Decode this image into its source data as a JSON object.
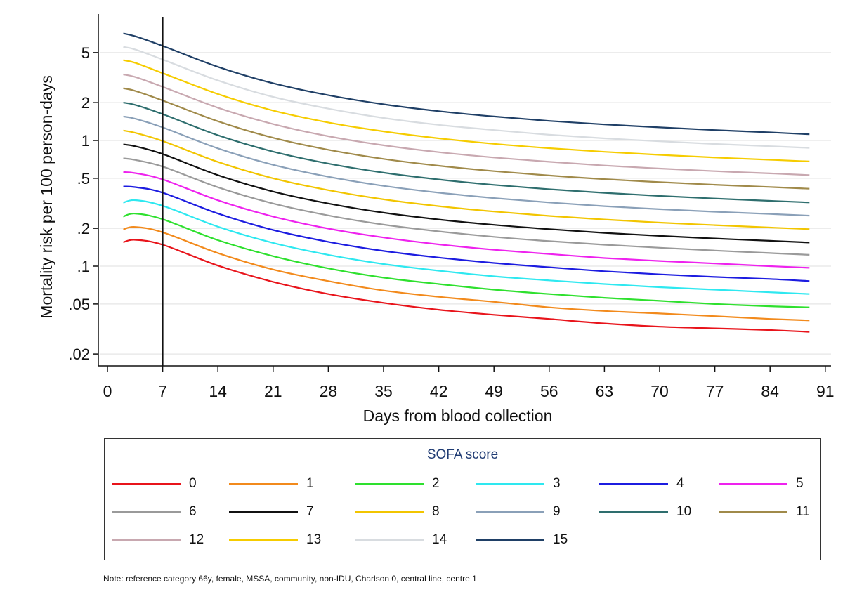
{
  "chart_data": {
    "type": "line",
    "xlabel": "Days from blood collection",
    "ylabel": "Mortality risk per 100 person-days",
    "y_scale": "log",
    "xlim": [
      0,
      91
    ],
    "ylim": [
      0.015,
      9
    ],
    "x_ticks": [
      0,
      7,
      14,
      21,
      28,
      35,
      42,
      49,
      56,
      63,
      70,
      77,
      84,
      91
    ],
    "y_ticks": [
      {
        "value": 5,
        "label": "5"
      },
      {
        "value": 2,
        "label": "2"
      },
      {
        "value": 1,
        "label": "1"
      },
      {
        "value": 0.5,
        "label": ".5"
      },
      {
        "value": 0.2,
        "label": ".2"
      },
      {
        "value": 0.1,
        "label": ".1"
      },
      {
        "value": 0.05,
        "label": ".05"
      },
      {
        "value": 0.02,
        "label": ".02"
      }
    ],
    "grid": true,
    "reference_line_x": 7,
    "x": [
      2,
      3.5,
      7,
      14,
      21,
      28,
      35,
      42,
      49,
      56,
      63,
      70,
      77,
      84,
      89
    ],
    "legend_title": "SOFA score",
    "legend_position": "bottom",
    "series": [
      {
        "name": "0",
        "color": "#e8141b",
        "values": [
          0.155,
          0.162,
          0.148,
          0.101,
          0.075,
          0.06,
          0.051,
          0.045,
          0.041,
          0.038,
          0.035,
          0.033,
          0.032,
          0.031,
          0.03
        ]
      },
      {
        "name": "1",
        "color": "#f28a1c",
        "values": [
          0.196,
          0.205,
          0.186,
          0.127,
          0.094,
          0.076,
          0.064,
          0.057,
          0.052,
          0.047,
          0.044,
          0.042,
          0.04,
          0.038,
          0.037
        ]
      },
      {
        "name": "2",
        "color": "#2ee02e",
        "values": [
          0.248,
          0.262,
          0.236,
          0.161,
          0.12,
          0.096,
          0.081,
          0.072,
          0.065,
          0.06,
          0.056,
          0.053,
          0.05,
          0.048,
          0.047
        ]
      },
      {
        "name": "3",
        "color": "#2ee8f0",
        "values": [
          0.32,
          0.335,
          0.302,
          0.206,
          0.153,
          0.123,
          0.104,
          0.092,
          0.083,
          0.077,
          0.072,
          0.068,
          0.065,
          0.062,
          0.06
        ]
      },
      {
        "name": "4",
        "color": "#1c1ce0",
        "values": [
          0.43,
          0.425,
          0.384,
          0.262,
          0.194,
          0.156,
          0.132,
          0.117,
          0.106,
          0.098,
          0.091,
          0.086,
          0.082,
          0.079,
          0.076
        ]
      },
      {
        "name": "5",
        "color": "#ee22ee",
        "values": [
          0.56,
          0.55,
          0.49,
          0.334,
          0.248,
          0.199,
          0.169,
          0.149,
          0.135,
          0.125,
          0.116,
          0.11,
          0.105,
          0.1,
          0.097
        ]
      },
      {
        "name": "6",
        "color": "#9a9a9a",
        "values": [
          0.72,
          0.7,
          0.62,
          0.424,
          0.315,
          0.253,
          0.214,
          0.189,
          0.171,
          0.158,
          0.148,
          0.14,
          0.133,
          0.127,
          0.123
        ]
      },
      {
        "name": "7",
        "color": "#111111",
        "values": [
          0.93,
          0.9,
          0.78,
          0.53,
          0.392,
          0.315,
          0.266,
          0.235,
          0.213,
          0.197,
          0.184,
          0.174,
          0.166,
          0.159,
          0.154
        ]
      },
      {
        "name": "8",
        "color": "#f2c500",
        "values": [
          1.2,
          1.15,
          0.99,
          0.675,
          0.5,
          0.402,
          0.34,
          0.3,
          0.272,
          0.251,
          0.235,
          0.222,
          0.212,
          0.203,
          0.197
        ]
      },
      {
        "name": "9",
        "color": "#8aa0b8",
        "values": [
          1.55,
          1.49,
          1.27,
          0.865,
          0.64,
          0.514,
          0.435,
          0.384,
          0.348,
          0.321,
          0.3,
          0.284,
          0.271,
          0.26,
          0.252
        ]
      },
      {
        "name": "10",
        "color": "#2e6e6e",
        "values": [
          2.0,
          1.92,
          1.62,
          1.1,
          0.815,
          0.655,
          0.554,
          0.489,
          0.443,
          0.409,
          0.383,
          0.362,
          0.345,
          0.331,
          0.321
        ]
      },
      {
        "name": "11",
        "color": "#a08a4a",
        "values": [
          2.6,
          2.48,
          2.08,
          1.42,
          1.05,
          0.843,
          0.713,
          0.629,
          0.57,
          0.526,
          0.492,
          0.466,
          0.444,
          0.426,
          0.413
        ]
      },
      {
        "name": "12",
        "color": "#c8a8b0",
        "values": [
          3.35,
          3.2,
          2.67,
          1.82,
          1.35,
          1.08,
          0.915,
          0.807,
          0.732,
          0.676,
          0.632,
          0.598,
          0.57,
          0.547,
          0.53
        ]
      },
      {
        "name": "13",
        "color": "#f6cc00",
        "values": [
          4.35,
          4.15,
          3.43,
          2.34,
          1.73,
          1.39,
          1.18,
          1.04,
          0.94,
          0.868,
          0.812,
          0.768,
          0.732,
          0.702,
          0.681
        ]
      },
      {
        "name": "14",
        "color": "#d8dce0",
        "values": [
          5.55,
          5.3,
          4.4,
          3.0,
          2.22,
          1.79,
          1.51,
          1.33,
          1.21,
          1.11,
          1.04,
          0.985,
          0.938,
          0.9,
          0.873
        ]
      },
      {
        "name": "15",
        "color": "#1f3f66",
        "values": [
          7.1,
          6.75,
          5.65,
          3.85,
          2.85,
          2.29,
          1.94,
          1.71,
          1.55,
          1.43,
          1.34,
          1.27,
          1.21,
          1.16,
          1.12
        ]
      }
    ]
  },
  "note": "Note: reference category 66y, female, MSSA, community, non-IDU, Charlson 0, central line, centre 1"
}
